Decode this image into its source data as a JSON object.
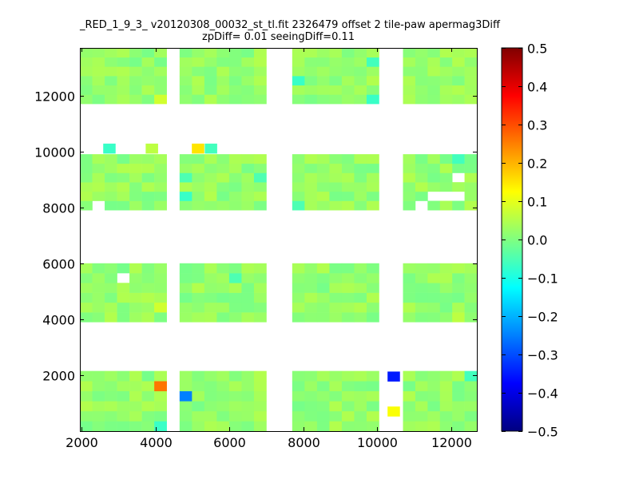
{
  "title": {
    "line1": "_RED_1_9_3_ v20120308_00032_st_tl.fit 2326479 offset 2 tile-paw apermag3Diff",
    "line2": "zpDiff= 0.01 seeingDiff=0.11"
  },
  "chart_data": {
    "type": "heatmap",
    "xlim": [
      1950,
      12700
    ],
    "ylim": [
      0,
      13700
    ],
    "x_ticks": [
      2000,
      4000,
      6000,
      8000,
      10000,
      12000
    ],
    "y_ticks": [
      2000,
      4000,
      6000,
      8000,
      10000,
      12000
    ],
    "colorbar": {
      "colormap": "jet",
      "vmin": -0.5,
      "vmax": 0.5,
      "ticks": [
        "0.5",
        "0.4",
        "0.3",
        "0.2",
        "0.1",
        "0.0",
        "−0.1",
        "−0.2",
        "−0.3",
        "−0.4",
        "−0.5"
      ]
    },
    "column_blocks": [
      {
        "x_range": [
          1950,
          4300
        ],
        "columns": 7
      },
      {
        "x_range": [
          4650,
          7000
        ],
        "columns": 7
      },
      {
        "x_range": [
          7700,
          10050
        ],
        "columns": 7
      },
      {
        "x_range": [
          10700,
          12700
        ],
        "columns": 6
      }
    ],
    "row_blocks": [
      {
        "y_range": [
          0,
          2150
        ],
        "rows": 6
      },
      {
        "y_range": [
          3900,
          6000
        ],
        "rows": 6
      },
      {
        "y_range": [
          7900,
          9900
        ],
        "rows": 6
      },
      {
        "y_range": [
          11700,
          13700
        ],
        "rows": 6
      }
    ],
    "base_value": 0.02,
    "notable_cells": [
      {
        "x": 4200,
        "y": 1550,
        "value": 0.26
      },
      {
        "x": 4800,
        "y": 1100,
        "value": -0.25
      },
      {
        "x": 10450,
        "y": 1950,
        "value": -0.35
      },
      {
        "x": 10450,
        "y": 700,
        "value": 0.12
      },
      {
        "x": 5150,
        "y": 10100,
        "value": 0.15
      },
      {
        "x": 4100,
        "y": 12000,
        "value": 0.08
      },
      {
        "x": 4100,
        "y": 4400,
        "value": 0.08
      },
      {
        "x": 3900,
        "y": 10100,
        "value": 0.06
      },
      {
        "x": 12350,
        "y": 4100,
        "value": 0.06
      },
      {
        "x": 2750,
        "y": 10100,
        "value": -0.07
      },
      {
        "x": 5500,
        "y": 10100,
        "value": -0.06
      },
      {
        "x": 8000,
        "y": 12600,
        "value": -0.07
      },
      {
        "x": 9800,
        "y": 12000,
        "value": -0.07
      },
      {
        "x": 9800,
        "y": 13200,
        "value": -0.06
      },
      {
        "x": 4800,
        "y": 8400,
        "value": -0.07
      },
      {
        "x": 4800,
        "y": 9000,
        "value": -0.05
      },
      {
        "x": 6700,
        "y": 9000,
        "value": -0.05
      },
      {
        "x": 4150,
        "y": 200,
        "value": -0.07
      },
      {
        "x": 12600,
        "y": 2000,
        "value": -0.06
      },
      {
        "x": 12350,
        "y": 9600,
        "value": -0.06
      },
      {
        "x": 6200,
        "y": 5500,
        "value": -0.05
      },
      {
        "x": 8000,
        "y": 8000,
        "value": -0.05
      }
    ],
    "missing_cells": [
      {
        "x": 3000,
        "y": 5500
      },
      {
        "x": 11600,
        "y": 8500
      },
      {
        "x": 11900,
        "y": 8500
      },
      {
        "x": 12350,
        "y": 8500
      },
      {
        "x": 12350,
        "y": 9000
      },
      {
        "x": 2450,
        "y": 8000
      },
      {
        "x": 11250,
        "y": 8000
      }
    ]
  }
}
